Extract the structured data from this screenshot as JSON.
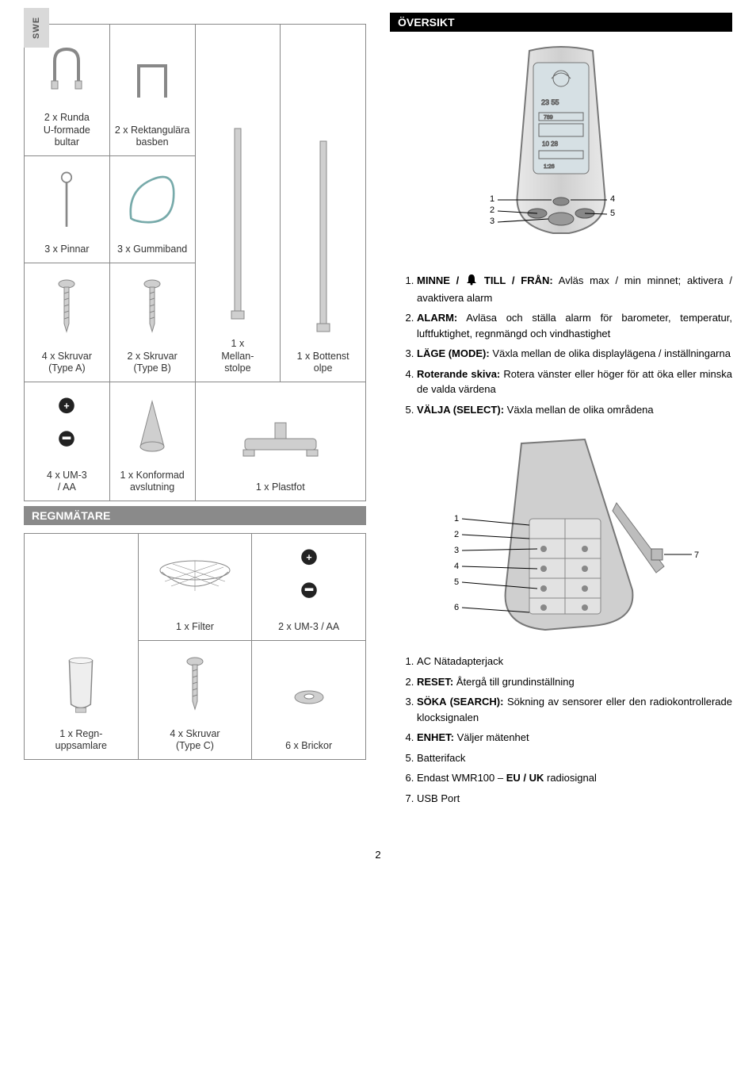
{
  "lang_tab": "SWE",
  "page_number": "2",
  "left": {
    "parts_table": {
      "rows": [
        [
          {
            "label": "2 x Runda\nU-formade\nbultar",
            "icon": "u-bolt"
          },
          {
            "label": "2 x Rektangulära\nbasben",
            "icon": "rect-base"
          },
          {
            "label": "1 x\nMellan-\nstolpe",
            "icon": "pole",
            "rowspan": 3
          },
          {
            "label": "1 x Bottenst\nolpe",
            "icon": "pole",
            "rowspan": 3
          }
        ],
        [
          {
            "label": "3 x Pinnar",
            "icon": "pin"
          },
          {
            "label": "3 x Gummiband",
            "icon": "rubberband"
          }
        ],
        [
          {
            "label": "4 x Skruvar\n(Type A)",
            "icon": "screw"
          },
          {
            "label": "2 x Skruvar\n(Type B)",
            "icon": "screw"
          }
        ],
        [
          {
            "label": "4 x UM-3\n/ AA",
            "icon": "battery"
          },
          {
            "label": "1 x Konformad\navslutning",
            "icon": "cone"
          },
          {
            "label": "1 x Plastfot",
            "icon": "plasticfoot",
            "colspan": 2
          }
        ]
      ]
    },
    "rain_section_title": "REGNMÄTARE",
    "rain_table": {
      "rows": [
        [
          {
            "label": "1 x Regn-\nuppsamlare",
            "icon": "raincup",
            "rowspan": 2
          },
          {
            "label": "1 x Filter",
            "icon": "mesh"
          },
          {
            "label": "2 x UM-3 / AA",
            "icon": "battery"
          }
        ],
        [
          {
            "label": "4 x Skruvar\n(Type C)",
            "icon": "screw"
          },
          {
            "label": "6 x Brickor",
            "icon": "washer"
          }
        ]
      ]
    }
  },
  "right": {
    "overview_title": "ÖVERSIKT",
    "front_fig": {
      "callouts_left": [
        "1",
        "2",
        "3"
      ],
      "callouts_right": [
        "4",
        "5"
      ]
    },
    "front_list": [
      {
        "bold": "MINNE / ",
        "icon": true,
        "bold2": " TILL / FRÅN:",
        "text": " Avläs max / min minnet; aktivera / avaktivera alarm"
      },
      {
        "bold": "ALARM:",
        "text": " Avläsa och ställa alarm för barometer, temperatur, luftfuktighet, regnmängd och vindhastighet"
      },
      {
        "bold": "LÄGE (MODE):",
        "text": " Växla mellan de olika displaylägena / inställningarna"
      },
      {
        "bold": "Roterande skiva:",
        "text": " Rotera vänster eller höger för att öka eller minska de valda värdena"
      },
      {
        "bold": "VÄLJA (SELECT):",
        "text": " Växla mellan de olika områdena"
      }
    ],
    "back_fig": {
      "callouts_left": [
        "1",
        "2",
        "3",
        "4",
        "5",
        "6"
      ],
      "callouts_right": [
        "7"
      ]
    },
    "back_list": [
      {
        "bold": "",
        "text": "AC Nätadapterjack"
      },
      {
        "bold": "RESET:",
        "text": " Återgå till grundinställning"
      },
      {
        "bold": "SÖKA (SEARCH):",
        "text": " Sökning av sensorer eller den radiokontrollerade klocksignalen"
      },
      {
        "bold": "ENHET:",
        "text": " Väljer mätenhet"
      },
      {
        "bold": "",
        "text": "Batterifack"
      },
      {
        "bold": "",
        "text": "Endast WMR100 – ",
        "bold2": "EU / UK",
        "text2": " radiosignal"
      },
      {
        "bold": "",
        "text": "USB Port"
      }
    ]
  },
  "icons": {
    "alarm_glyph": "🔔",
    "stroke": "#888888",
    "fill": "#cfcfcf"
  }
}
